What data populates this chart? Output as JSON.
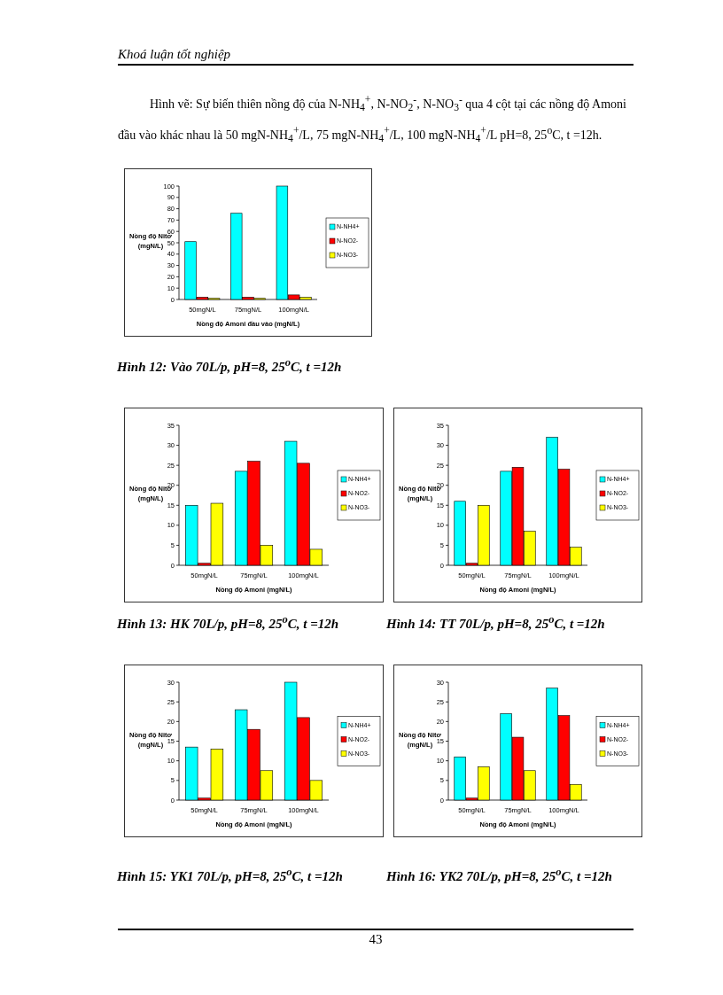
{
  "chart_data": [
    {
      "type": "bar",
      "categories": [
        "50mgN/L",
        "75mgN/L",
        "100mgN/L"
      ],
      "xlabel": "Nồng độ Amoni đầu vào (mgN/L)",
      "ylabel": "Nồng độ Nitơ\n(mgN/L)",
      "series": [
        {
          "name": "N-NH4+",
          "color": "#00ffff",
          "values": [
            51,
            76,
            100
          ]
        },
        {
          "name": "N-NO2-",
          "color": "#ff0000",
          "values": [
            2,
            2,
            4
          ]
        },
        {
          "name": "N-NO3-",
          "color": "#ffff00",
          "values": [
            1,
            1,
            2
          ]
        }
      ],
      "ylim": [
        0,
        100
      ],
      "yticks": [
        0,
        10,
        20,
        30,
        40,
        50,
        60,
        70,
        80,
        90,
        100
      ],
      "grid": false,
      "legend": "right",
      "annotations": [
        "Khoá luận tốt nghiệp",
        "Hình vẽ: Sự biến thiên nồng độ của N-NH$_{4}$$^{+}$, N-NO$_{2}$$^{-}$, N-NO$_{3}$$^{-}$ qua 4 cột tại các nồng độ Amoni đầu vào khác nhau là 50 mgN-NH$_{4}$$^{+}$/L, 75 mgN-NH$_{4}$$^{+}$/L, 100 mgN-NH$_{4}$$^{+}$/L pH=8, 25$^{o}$C, t =12h.",
        "43",
        "Hình 12: Vào 70L/p, pH=8, 25$^{o}$C, t =12h"
      ]
    },
    {
      "type": "bar",
      "categories": [
        "50mgN/L",
        "75mgN/L",
        "100mgN/L"
      ],
      "xlabel": "Nồng độ Amoni (mgN/L)",
      "ylabel": "Nồng độ Nitơ\n(mgN/L)",
      "series": [
        {
          "name": "N-NH4+",
          "color": "#00ffff",
          "values": [
            15,
            23.5,
            31
          ]
        },
        {
          "name": "N-NO2-",
          "color": "#ff0000",
          "values": [
            0.5,
            26,
            25.5
          ]
        },
        {
          "name": "N-NO3-",
          "color": "#ffff00",
          "values": [
            15.5,
            5,
            4
          ]
        }
      ],
      "ylim": [
        0,
        35
      ],
      "yticks": [
        0,
        5,
        10,
        15,
        20,
        25,
        30,
        35
      ],
      "grid": false,
      "legend": "right",
      "annotations": [
        "Hình 13: HK 70L/p, pH=8, 25$^{o}$C, t =12h"
      ]
    },
    {
      "type": "bar",
      "categories": [
        "50mgN/L",
        "75mgN/L",
        "100mgN/L"
      ],
      "xlabel": "Nồng độ Amoni (mgN/L)",
      "ylabel": "Nồng độ Nitơ\n(mgN/L)",
      "series": [
        {
          "name": "N-NH4+",
          "color": "#00ffff",
          "values": [
            16,
            23.5,
            32
          ]
        },
        {
          "name": "N-NO2-",
          "color": "#ff0000",
          "values": [
            0.5,
            24.5,
            24
          ]
        },
        {
          "name": "N-NO3-",
          "color": "#ffff00",
          "values": [
            15,
            8.5,
            4.5
          ]
        }
      ],
      "ylim": [
        0,
        35
      ],
      "yticks": [
        0,
        5,
        10,
        15,
        20,
        25,
        30,
        35
      ],
      "grid": false,
      "legend": "right",
      "annotations": [
        "Hình 14: TT 70L/p, pH=8, 25$^{o}$C, t =12h"
      ]
    },
    {
      "type": "bar",
      "categories": [
        "50mgN/L",
        "75mgN/L",
        "100mgN/L"
      ],
      "xlabel": "Nồng độ Amoni (mgN/L)",
      "ylabel": "Nồng độ Nitơ\n(mgN/L)",
      "series": [
        {
          "name": "N-NH4+",
          "color": "#00ffff",
          "values": [
            13.5,
            23,
            30
          ]
        },
        {
          "name": "N-NO2-",
          "color": "#ff0000",
          "values": [
            0.5,
            18,
            21
          ]
        },
        {
          "name": "N-NO3-",
          "color": "#ffff00",
          "values": [
            13,
            7.5,
            5
          ]
        }
      ],
      "ylim": [
        0,
        30
      ],
      "yticks": [
        0,
        5,
        10,
        15,
        20,
        25,
        30
      ],
      "grid": false,
      "legend": "right",
      "annotations": [
        "Hình 15: YK1 70L/p, pH=8, 25$^{o}$C, t =12h"
      ]
    },
    {
      "type": "bar",
      "categories": [
        "50mgN/L",
        "75mgN/L",
        "100mgN/L"
      ],
      "xlabel": "Nồng độ Amoni (mgN/L)",
      "ylabel": "Nồng độ Nitơ\n(mgN/L)",
      "series": [
        {
          "name": "N-NH4+",
          "color": "#00ffff",
          "values": [
            11,
            22,
            28.5
          ]
        },
        {
          "name": "N-NO2-",
          "color": "#ff0000",
          "values": [
            0.5,
            16,
            21.5
          ]
        },
        {
          "name": "N-NO3-",
          "color": "#ffff00",
          "values": [
            8.5,
            7.5,
            4
          ]
        }
      ],
      "ylim": [
        0,
        30
      ],
      "yticks": [
        0,
        5,
        10,
        15,
        20,
        25,
        30
      ],
      "grid": false,
      "legend": "right",
      "annotations": [
        "Hình 16: YK2 70L/p, pH=8, 25$^{o}$C, t =12h"
      ]
    }
  ]
}
